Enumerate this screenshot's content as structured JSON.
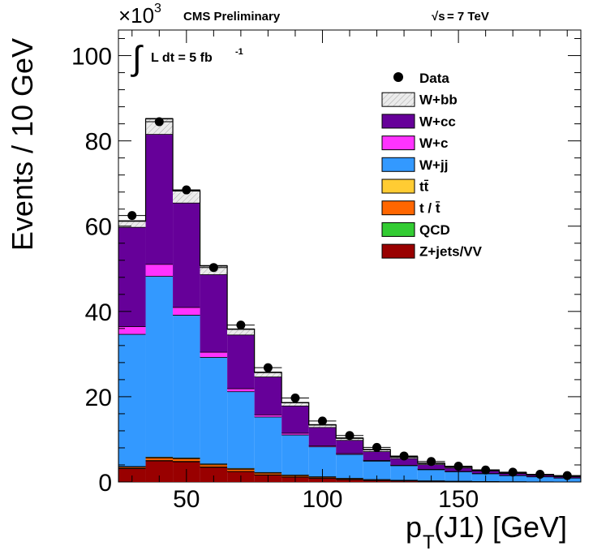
{
  "header": {
    "exponent_base": "×10",
    "exponent_power": "3",
    "experiment": "CMS Preliminary",
    "energy_sqrt": "√s",
    "energy_value": "= 7 TeV",
    "lumi_prefix": "L dt = 5 fb",
    "lumi_power": "-1"
  },
  "chart_data": {
    "type": "bar",
    "subtype": "stacked-histogram",
    "xlabel_main": "p",
    "xlabel_sub": "T",
    "xlabel_rest": "(J1) [GeV]",
    "ylabel": "Events / 10 GeV",
    "xlim": [
      25,
      195
    ],
    "ylim": [
      0,
      106
    ],
    "y_unit_multiplier": 1000,
    "x_ticks": [
      50,
      100,
      150
    ],
    "y_ticks": [
      0,
      20,
      40,
      60,
      80,
      100
    ],
    "bin_edges": [
      25,
      35,
      45,
      55,
      65,
      75,
      85,
      95,
      105,
      115,
      125,
      135,
      145,
      155,
      165,
      175,
      185,
      195
    ],
    "bin_centers": [
      30,
      40,
      50,
      60,
      70,
      80,
      90,
      100,
      110,
      120,
      130,
      140,
      150,
      160,
      170,
      180,
      190
    ],
    "stack_order_bottom_to_top": [
      "Z+jets/VV",
      "QCD",
      "t / t̄",
      "tt̄",
      "W+jj",
      "W+c",
      "W+cc",
      "W+bb"
    ],
    "series": [
      {
        "name": "Z+jets/VV",
        "color": "#990000",
        "values": [
          3.2,
          5.0,
          4.8,
          3.5,
          2.5,
          1.7,
          1.2,
          0.9,
          0.6,
          0.4,
          0.3,
          0.2,
          0.15,
          0.1,
          0.08,
          0.05,
          0.04
        ]
      },
      {
        "name": "QCD",
        "color": "#33cc33",
        "values": [
          0.1,
          0.1,
          0.1,
          0.1,
          0.05,
          0.05,
          0.05,
          0.03,
          0.03,
          0.02,
          0.02,
          0.01,
          0.01,
          0.01,
          0.01,
          0.01,
          0.01
        ]
      },
      {
        "name": "t / t̄",
        "color": "#ff6600",
        "values": [
          0.3,
          0.6,
          0.6,
          0.5,
          0.5,
          0.4,
          0.3,
          0.25,
          0.2,
          0.15,
          0.1,
          0.08,
          0.06,
          0.05,
          0.04,
          0.03,
          0.02
        ]
      },
      {
        "name": "tt̄",
        "color": "#ffcc33",
        "values": [
          0.1,
          0.2,
          0.2,
          0.2,
          0.2,
          0.15,
          0.15,
          0.12,
          0.1,
          0.08,
          0.06,
          0.05,
          0.04,
          0.03,
          0.02,
          0.02,
          0.02
        ]
      },
      {
        "name": "W+jj",
        "color": "#3399ff",
        "values": [
          31.0,
          42.4,
          33.5,
          25.0,
          18.0,
          13.0,
          9.4,
          7.0,
          5.6,
          4.3,
          3.4,
          2.6,
          2.2,
          1.8,
          1.4,
          1.15,
          0.9
        ]
      },
      {
        "name": "W+c",
        "color": "#ff33ff",
        "values": [
          1.8,
          2.8,
          1.8,
          1.2,
          0.7,
          0.5,
          0.4,
          0.25,
          0.2,
          0.15,
          0.1,
          0.1,
          0.08,
          0.06,
          0.05,
          0.04,
          0.03
        ]
      },
      {
        "name": "W+cc",
        "color": "#660099",
        "values": [
          23.3,
          30.5,
          24.5,
          18.2,
          12.6,
          8.9,
          6.4,
          4.3,
          3.1,
          2.1,
          1.6,
          1.1,
          0.8,
          0.6,
          0.45,
          0.35,
          0.3
        ]
      },
      {
        "name": "W+bb",
        "color": "#e8e8e8",
        "hatched": true,
        "values": [
          1.4,
          3.6,
          2.8,
          2.0,
          1.3,
          1.0,
          0.7,
          0.55,
          0.45,
          0.4,
          0.3,
          0.25,
          0.2,
          0.15,
          0.1,
          0.1,
          0.1
        ]
      }
    ],
    "data_points": {
      "name": "Data",
      "x": [
        30,
        40,
        50,
        60,
        70,
        80,
        90,
        100,
        110,
        120,
        130,
        140,
        150,
        160,
        170,
        180,
        190
      ],
      "y": [
        62.5,
        84.5,
        68.5,
        50.3,
        36.8,
        26.8,
        19.7,
        14.3,
        10.9,
        8.1,
        6.1,
        4.8,
        3.7,
        2.8,
        2.3,
        1.8,
        1.5
      ]
    },
    "legend_order": [
      "Data",
      "W+bb",
      "W+cc",
      "W+c",
      "W+jj",
      "tt̄",
      "t / t̄",
      "QCD",
      "Z+jets/VV"
    ],
    "legend_position": "top-right"
  }
}
